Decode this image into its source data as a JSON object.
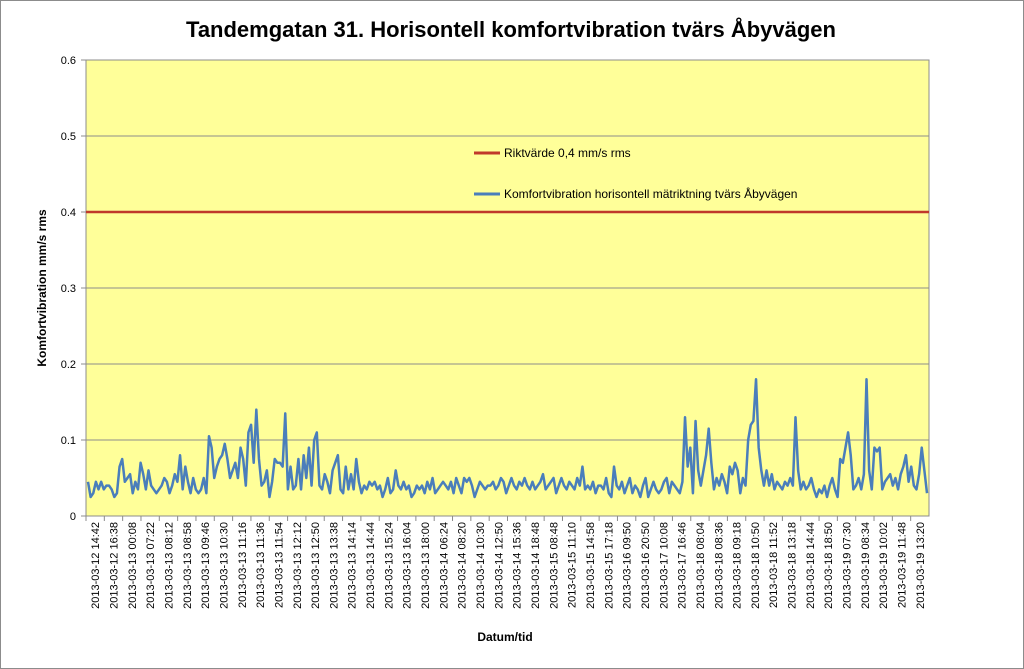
{
  "chart_data": {
    "type": "line",
    "title": "Tandemgatan 31. Horisontell komfortvibration tvärs Åbyvägen",
    "xlabel": "Datum/tid",
    "ylabel": "Komfortvibration mm/s rms",
    "ylim": [
      0,
      0.6
    ],
    "y_ticks": [
      0,
      0.1,
      0.2,
      0.3,
      0.4,
      0.5,
      0.6
    ],
    "y_tick_labels": [
      "0",
      "0.1",
      "0.2",
      "0.3",
      "0.4",
      "0.5",
      "0.6"
    ],
    "grid": true,
    "legend_position": "center-right",
    "x_tick_labels": [
      "2013-03-12 14:42",
      "2013-03-12 16:38",
      "2013-03-13 00:08",
      "2013-03-13 07:22",
      "2013-03-13 08:12",
      "2013-03-13 08:58",
      "2013-03-13 09:46",
      "2013-03-13 10:30",
      "2013-03-13 11:16",
      "2013-03-13 11:36",
      "2013-03-13 11:54",
      "2013-03-13 12:12",
      "2013-03-13 12:50",
      "2013-03-13 13:38",
      "2013-03-13 14:14",
      "2013-03-13 14:44",
      "2013-03-13 15:24",
      "2013-03-13 16:04",
      "2013-03-13 18:00",
      "2013-03-14 06:24",
      "2013-03-14 08:20",
      "2013-03-14 10:30",
      "2013-03-14 12:50",
      "2013-03-14 15:36",
      "2013-03-14 18:48",
      "2013-03-15 08:48",
      "2013-03-15 11:10",
      "2013-03-15 14:58",
      "2013-03-15 17:18",
      "2013-03-16 09:50",
      "2013-03-16 20:50",
      "2013-03-17 10:08",
      "2013-03-17 16:46",
      "2013-03-18 08:04",
      "2013-03-18 08:36",
      "2013-03-18 09:18",
      "2013-03-18 10:50",
      "2013-03-18 11:52",
      "2013-03-18 13:18",
      "2013-03-18 14:44",
      "2013-03-18 18:50",
      "2013-03-19 07:30",
      "2013-03-19 08:34",
      "2013-03-19 10:02",
      "2013-03-19 11:48",
      "2013-03-19 13:20"
    ],
    "series": [
      {
        "name": "Riktvärde 0,4 mm/s rms",
        "color": "#c0392b",
        "values": [
          0.4,
          0.4
        ]
      },
      {
        "name": "Komfortvibration horisontell mätriktning tvärs Åbyvägen",
        "color": "#4a7ebb",
        "values": [
          0.045,
          0.025,
          0.03,
          0.045,
          0.035,
          0.045,
          0.035,
          0.04,
          0.04,
          0.035,
          0.025,
          0.03,
          0.065,
          0.075,
          0.045,
          0.05,
          0.055,
          0.03,
          0.045,
          0.035,
          0.07,
          0.055,
          0.035,
          0.06,
          0.04,
          0.035,
          0.03,
          0.035,
          0.04,
          0.05,
          0.045,
          0.03,
          0.04,
          0.055,
          0.045,
          0.08,
          0.035,
          0.065,
          0.045,
          0.03,
          0.05,
          0.035,
          0.03,
          0.035,
          0.05,
          0.03,
          0.105,
          0.09,
          0.05,
          0.065,
          0.075,
          0.08,
          0.095,
          0.075,
          0.05,
          0.06,
          0.07,
          0.05,
          0.09,
          0.075,
          0.04,
          0.11,
          0.12,
          0.07,
          0.14,
          0.075,
          0.04,
          0.045,
          0.06,
          0.025,
          0.045,
          0.075,
          0.07,
          0.07,
          0.065,
          0.135,
          0.035,
          0.065,
          0.035,
          0.04,
          0.075,
          0.035,
          0.08,
          0.05,
          0.09,
          0.04,
          0.1,
          0.11,
          0.04,
          0.035,
          0.055,
          0.045,
          0.03,
          0.06,
          0.07,
          0.08,
          0.035,
          0.03,
          0.065,
          0.035,
          0.055,
          0.035,
          0.075,
          0.045,
          0.03,
          0.04,
          0.035,
          0.045,
          0.04,
          0.045,
          0.035,
          0.04,
          0.025,
          0.035,
          0.05,
          0.03,
          0.035,
          0.06,
          0.04,
          0.035,
          0.045,
          0.035,
          0.04,
          0.025,
          0.03,
          0.04,
          0.035,
          0.04,
          0.03,
          0.045,
          0.035,
          0.05,
          0.03,
          0.035,
          0.04,
          0.045,
          0.04,
          0.035,
          0.045,
          0.03,
          0.05,
          0.04,
          0.03,
          0.05,
          0.045,
          0.05,
          0.04,
          0.025,
          0.035,
          0.045,
          0.04,
          0.035,
          0.04,
          0.04,
          0.045,
          0.035,
          0.04,
          0.05,
          0.045,
          0.03,
          0.04,
          0.05,
          0.04,
          0.035,
          0.045,
          0.04,
          0.05,
          0.04,
          0.035,
          0.045,
          0.035,
          0.04,
          0.045,
          0.055,
          0.035,
          0.04,
          0.045,
          0.05,
          0.03,
          0.04,
          0.05,
          0.04,
          0.035,
          0.045,
          0.04,
          0.035,
          0.05,
          0.04,
          0.065,
          0.035,
          0.04,
          0.035,
          0.045,
          0.03,
          0.04,
          0.04,
          0.035,
          0.05,
          0.03,
          0.025,
          0.065,
          0.04,
          0.035,
          0.045,
          0.03,
          0.04,
          0.05,
          0.03,
          0.04,
          0.035,
          0.025,
          0.04,
          0.05,
          0.025,
          0.035,
          0.045,
          0.035,
          0.03,
          0.035,
          0.045,
          0.05,
          0.03,
          0.045,
          0.04,
          0.035,
          0.03,
          0.045,
          0.13,
          0.065,
          0.09,
          0.03,
          0.125,
          0.06,
          0.04,
          0.06,
          0.08,
          0.115,
          0.07,
          0.035,
          0.05,
          0.04,
          0.055,
          0.045,
          0.03,
          0.065,
          0.055,
          0.07,
          0.06,
          0.03,
          0.05,
          0.04,
          0.1,
          0.12,
          0.125,
          0.18,
          0.09,
          0.06,
          0.04,
          0.06,
          0.04,
          0.055,
          0.035,
          0.045,
          0.04,
          0.035,
          0.045,
          0.04,
          0.05,
          0.04,
          0.13,
          0.06,
          0.035,
          0.045,
          0.035,
          0.04,
          0.05,
          0.035,
          0.025,
          0.035,
          0.03,
          0.04,
          0.025,
          0.04,
          0.05,
          0.035,
          0.025,
          0.075,
          0.07,
          0.09,
          0.11,
          0.08,
          0.035,
          0.04,
          0.05,
          0.035,
          0.055,
          0.18,
          0.06,
          0.035,
          0.09,
          0.085,
          0.09,
          0.035,
          0.045,
          0.05,
          0.055,
          0.04,
          0.05,
          0.035,
          0.055,
          0.065,
          0.08,
          0.045,
          0.065,
          0.04,
          0.035,
          0.055,
          0.09,
          0.06,
          0.03
        ]
      }
    ]
  }
}
